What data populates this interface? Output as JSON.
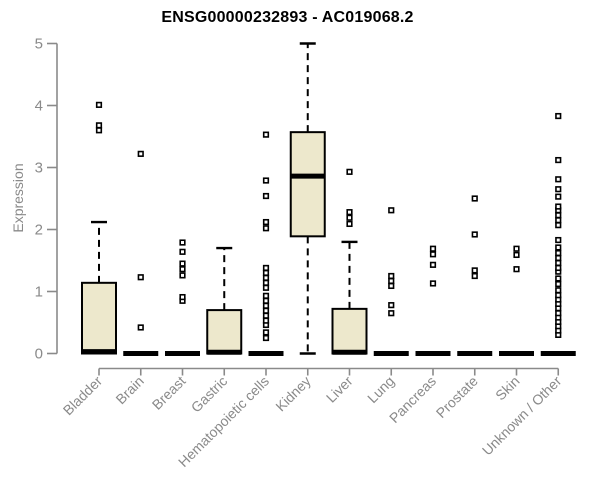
{
  "page": {
    "background": "#ffffff"
  },
  "chart_data": {
    "type": "boxplot",
    "title": "ENSG00000232893 - AC019068.2",
    "ylabel": "Expression",
    "xlabel": "",
    "ylim": [
      0,
      5
    ],
    "yticks": [
      0,
      1,
      2,
      3,
      4,
      5
    ],
    "grid": false,
    "legend": false,
    "categories": [
      "Bladder",
      "Brain",
      "Breast",
      "Gastric",
      "Hematopoietic cells",
      "Kidney",
      "Liver",
      "Lung",
      "Pancreas",
      "Prostate",
      "Skin",
      "Unknown / Other"
    ],
    "boxes": [
      {
        "category": "Bladder",
        "whisker_low": 0,
        "q1": 0,
        "median": 0.03,
        "q3": 1.14,
        "whisker_high": 2.12,
        "outliers": [
          3.6,
          3.68,
          4.01
        ]
      },
      {
        "category": "Brain",
        "whisker_low": 0,
        "q1": 0,
        "median": 0,
        "q3": 0,
        "whisker_high": 0,
        "outliers": [
          0.42,
          1.23,
          3.22
        ]
      },
      {
        "category": "Breast",
        "whisker_low": 0,
        "q1": 0,
        "median": 0,
        "q3": 0,
        "whisker_high": 0,
        "outliers": [
          0.85,
          0.91,
          1.26,
          1.36,
          1.45,
          1.64,
          1.79
        ]
      },
      {
        "category": "Gastric",
        "whisker_low": 0,
        "q1": 0,
        "median": 0.02,
        "q3": 0.7,
        "whisker_high": 1.7,
        "outliers": []
      },
      {
        "category": "Hematopoietic cells",
        "whisker_low": 0,
        "q1": 0,
        "median": 0,
        "q3": 0,
        "whisker_high": 0,
        "outliers": [
          0.25,
          0.34,
          0.46,
          0.53,
          0.61,
          0.69,
          0.77,
          0.85,
          0.93,
          1.06,
          1.14,
          1.22,
          1.3,
          1.38,
          2.02,
          2.12,
          2.54,
          2.79,
          3.53
        ]
      },
      {
        "category": "Kidney",
        "whisker_low": 0,
        "q1": 1.89,
        "median": 2.86,
        "q3": 3.57,
        "whisker_high": 5.0,
        "outliers": []
      },
      {
        "category": "Liver",
        "whisker_low": 0,
        "q1": 0,
        "median": 0.02,
        "q3": 0.72,
        "whisker_high": 1.8,
        "outliers": [
          2.09,
          2.19,
          2.28,
          2.93
        ]
      },
      {
        "category": "Lung",
        "whisker_low": 0,
        "q1": 0,
        "median": 0,
        "q3": 0,
        "whisker_high": 0,
        "outliers": [
          0.65,
          0.78,
          1.09,
          1.17,
          1.25,
          2.31
        ]
      },
      {
        "category": "Pancreas",
        "whisker_low": 0,
        "q1": 0,
        "median": 0,
        "q3": 0,
        "whisker_high": 0,
        "outliers": [
          1.13,
          1.43,
          1.6,
          1.69
        ]
      },
      {
        "category": "Prostate",
        "whisker_low": 0,
        "q1": 0,
        "median": 0,
        "q3": 0,
        "whisker_high": 0,
        "outliers": [
          1.25,
          1.34,
          1.92,
          2.5
        ]
      },
      {
        "category": "Skin",
        "whisker_low": 0,
        "q1": 0,
        "median": 0,
        "q3": 0,
        "whisker_high": 0,
        "outliers": [
          1.36,
          1.59,
          1.69
        ]
      },
      {
        "category": "Unknown / Other",
        "whisker_low": 0,
        "q1": 0,
        "median": 0,
        "q3": 0,
        "whisker_high": 0,
        "outliers": [
          0.3,
          0.37,
          0.44,
          0.51,
          0.58,
          0.65,
          0.73,
          0.8,
          0.87,
          0.94,
          1.02,
          1.12,
          1.21,
          1.32,
          1.38,
          1.46,
          1.54,
          1.62,
          1.71,
          1.83,
          2.07,
          2.15,
          2.23,
          2.31,
          2.37,
          2.53,
          2.65,
          2.81,
          3.12,
          3.83
        ]
      }
    ],
    "style": {
      "box_fill": "#EDE8CC",
      "box_stroke": "#000000",
      "median_color": "#000000",
      "whisker_style": "dashed",
      "outlier_marker": "open-square",
      "axis_color": "#8A8A8A",
      "tick_label_color": "#8A8A8A",
      "title_color": "#000000"
    }
  }
}
